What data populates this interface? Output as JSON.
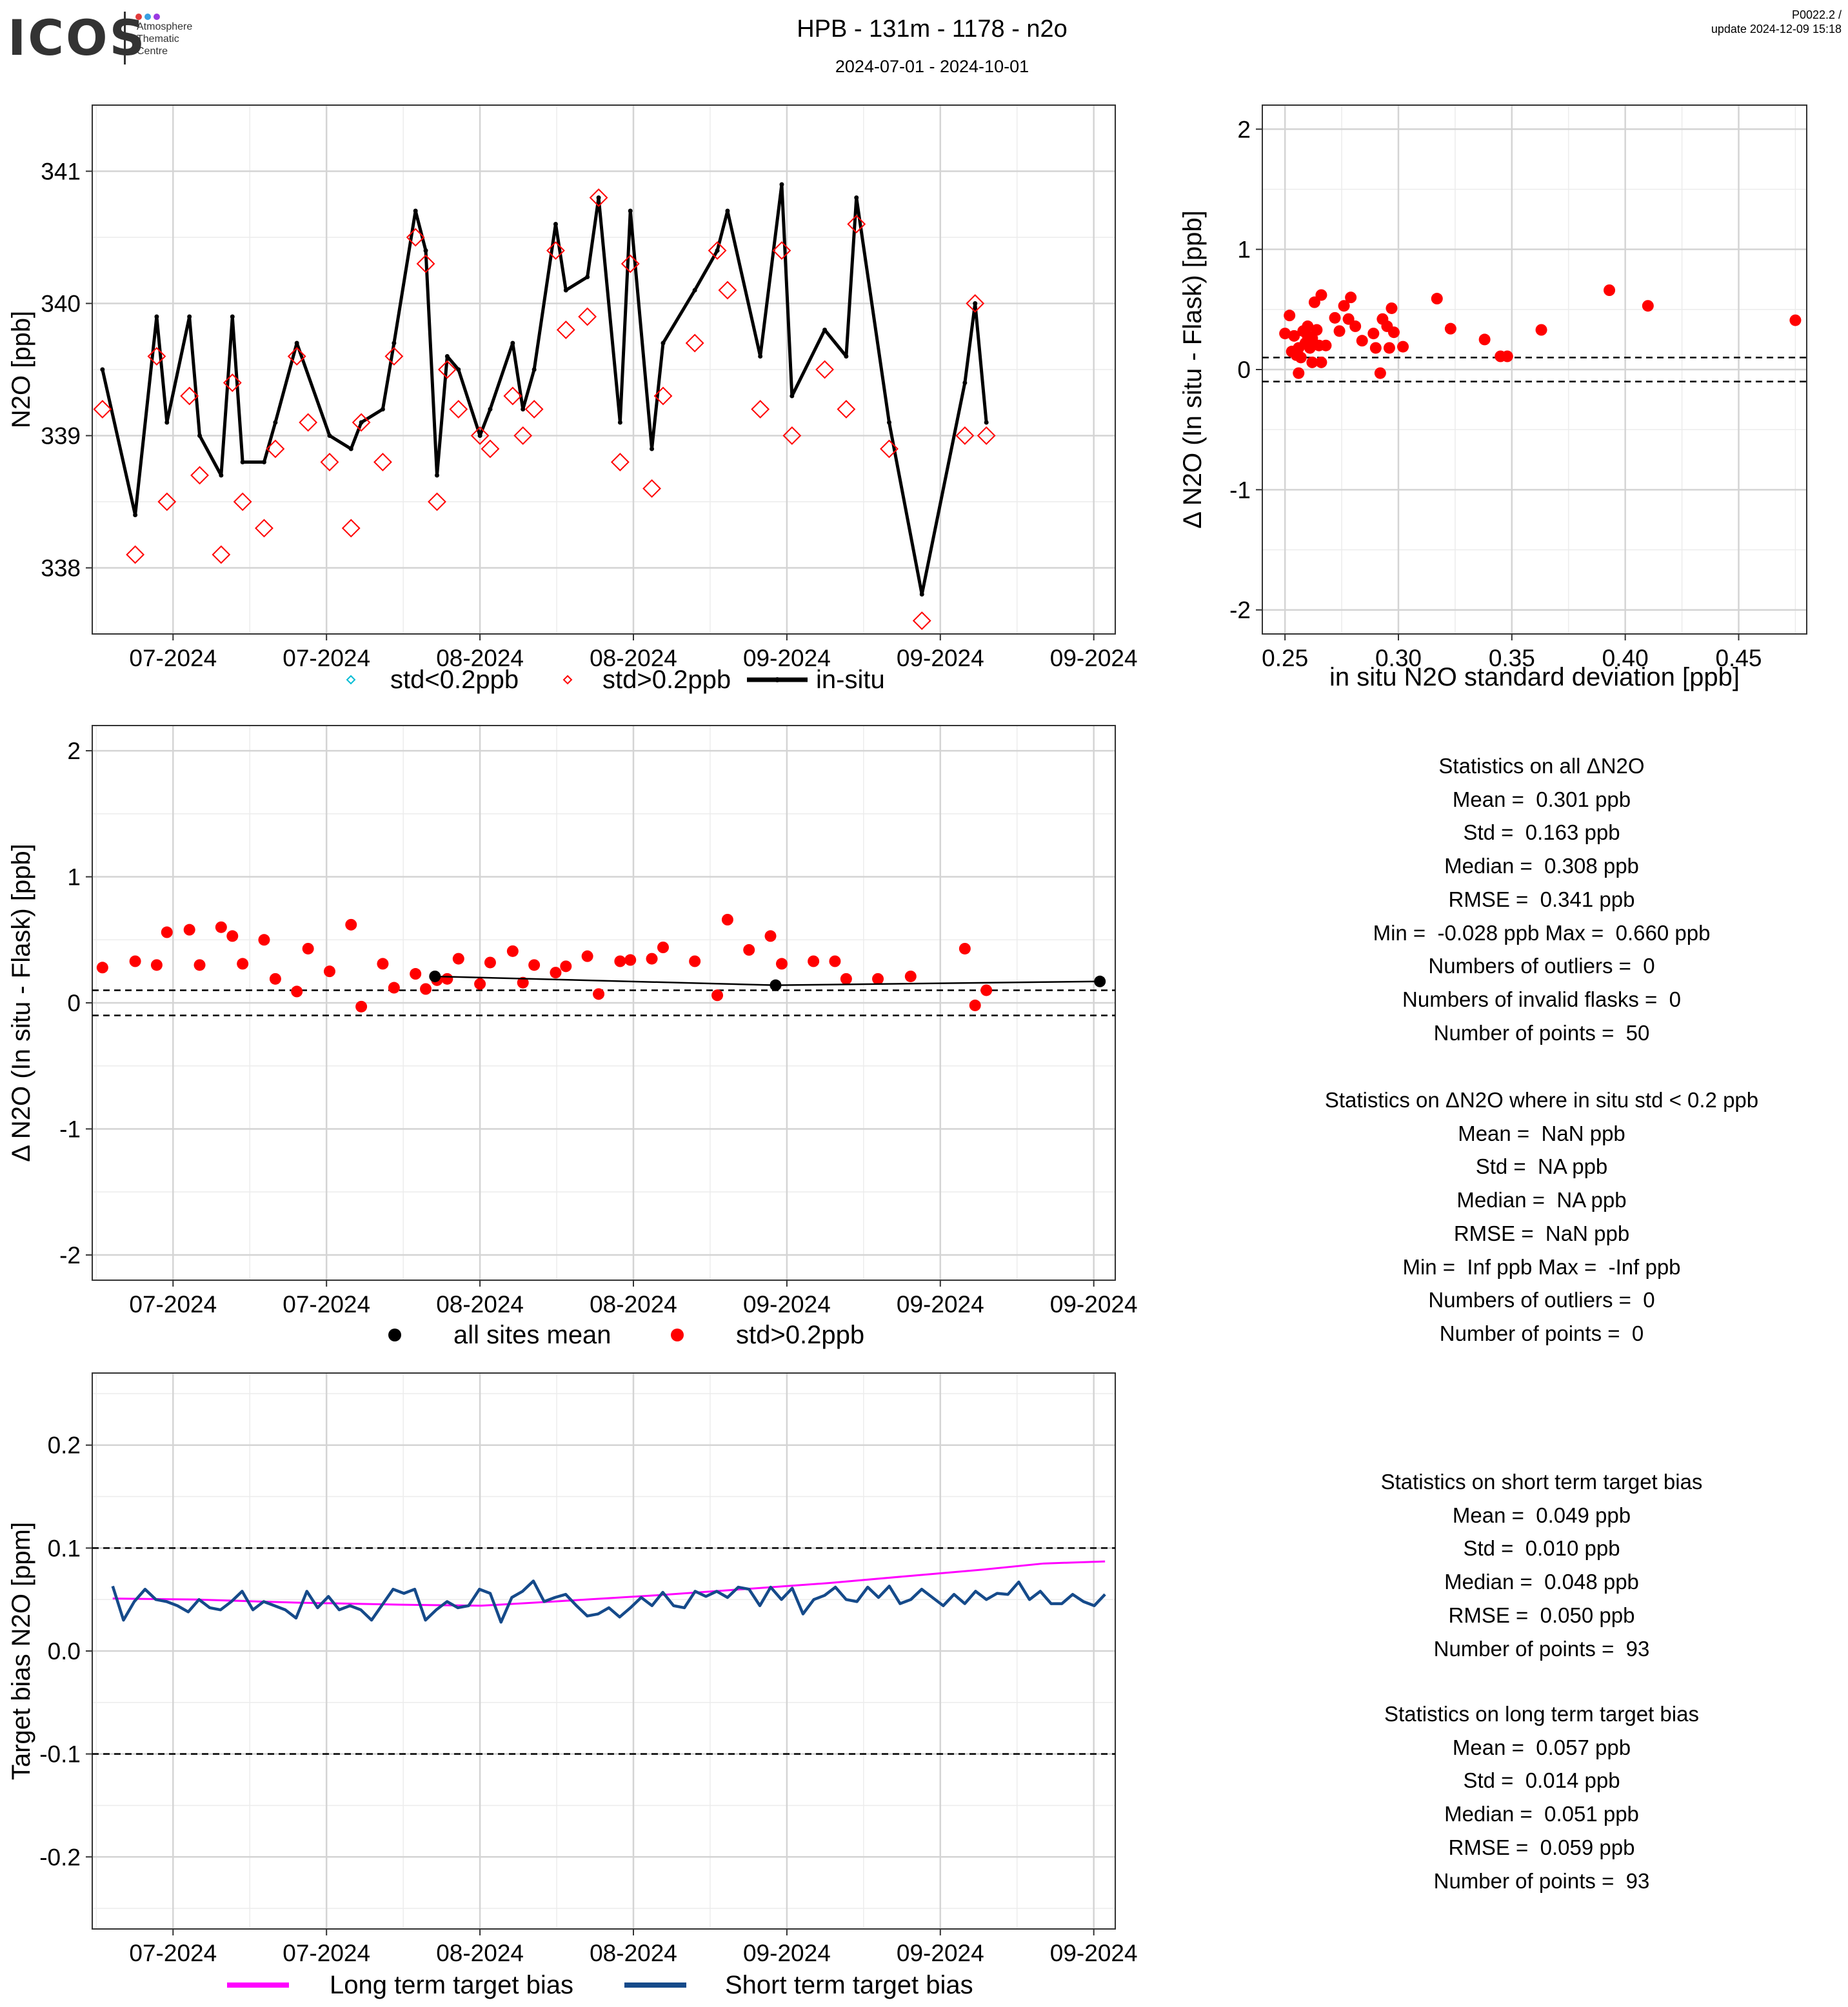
{
  "header": {
    "logo_text": "ICOS",
    "logo_sub": [
      "Atmosphere",
      "Thematic",
      "Centre"
    ],
    "logo_colors": [
      "#e23a3a",
      "#3aa0e2",
      "#9b3ae2"
    ],
    "title": "HPB - 131m - 1178 - n2o",
    "subtitle": "2024-07-01 - 2024-10-01",
    "version_line1": "P0022.2 /",
    "version_line2": "update  2024-12-09 15:18"
  },
  "chart_data": [
    {
      "id": "timeseries",
      "type": "line",
      "ylabel": "N2O [ppb]",
      "xlabel": "",
      "xlim": [
        0,
        100
      ],
      "ylim": [
        337.5,
        341.5
      ],
      "yticks": [
        338,
        339,
        340,
        341
      ],
      "xticks": [
        7.9,
        22.9,
        37.9,
        52.9,
        67.9,
        82.9,
        97.9
      ],
      "xtick_labels": [
        "07-2024",
        "07-2024",
        "08-2024",
        "08-2024",
        "09-2024",
        "09-2024",
        "09-2024"
      ],
      "grid": true,
      "legend": "bottom",
      "colors": {
        "insitu": "#000000",
        "low_std": "#00bcd4",
        "high_std": "#ff0000"
      },
      "legend_entries": [
        "std<0.2ppb",
        "std>0.2ppb",
        "in-situ"
      ],
      "insitu": [
        [
          1.0,
          339.5
        ],
        [
          4.2,
          338.4
        ],
        [
          6.3,
          339.9
        ],
        [
          7.3,
          339.1
        ],
        [
          9.5,
          339.9
        ],
        [
          10.5,
          339.0
        ],
        [
          12.6,
          338.7
        ],
        [
          13.7,
          339.9
        ],
        [
          14.7,
          338.8
        ],
        [
          16.8,
          338.8
        ],
        [
          17.9,
          339.1
        ],
        [
          20.0,
          339.7
        ],
        [
          23.2,
          339.0
        ],
        [
          25.3,
          338.9
        ],
        [
          26.3,
          339.1
        ],
        [
          28.4,
          339.2
        ],
        [
          29.5,
          339.7
        ],
        [
          31.6,
          340.7
        ],
        [
          32.6,
          340.4
        ],
        [
          33.7,
          338.7
        ],
        [
          34.7,
          339.6
        ],
        [
          35.8,
          339.5
        ],
        [
          37.9,
          339.0
        ],
        [
          38.9,
          339.2
        ],
        [
          41.1,
          339.7
        ],
        [
          42.1,
          339.2
        ],
        [
          43.2,
          339.5
        ],
        [
          45.3,
          340.6
        ],
        [
          46.3,
          340.1
        ],
        [
          48.4,
          340.2
        ],
        [
          49.5,
          340.8
        ],
        [
          51.6,
          339.1
        ],
        [
          52.6,
          340.7
        ],
        [
          54.7,
          338.9
        ],
        [
          55.8,
          339.7
        ],
        [
          58.9,
          340.1
        ],
        [
          61.1,
          340.4
        ],
        [
          62.1,
          340.7
        ],
        [
          65.3,
          339.6
        ],
        [
          67.4,
          340.9
        ],
        [
          68.4,
          339.3
        ],
        [
          71.6,
          339.8
        ],
        [
          73.7,
          339.6
        ],
        [
          74.7,
          340.8
        ],
        [
          77.9,
          339.1
        ],
        [
          81.1,
          337.8
        ],
        [
          85.3,
          339.4
        ],
        [
          86.3,
          340.0
        ],
        [
          87.4,
          339.1
        ]
      ],
      "flask_high_std": [
        [
          1.0,
          339.2
        ],
        [
          4.2,
          338.1
        ],
        [
          6.3,
          339.6
        ],
        [
          7.3,
          338.5
        ],
        [
          9.5,
          339.3
        ],
        [
          10.5,
          338.7
        ],
        [
          12.6,
          338.1
        ],
        [
          13.7,
          339.4
        ],
        [
          14.7,
          338.5
        ],
        [
          16.8,
          338.3
        ],
        [
          17.9,
          338.9
        ],
        [
          20.0,
          339.6
        ],
        [
          21.1,
          339.1
        ],
        [
          23.2,
          338.8
        ],
        [
          25.3,
          338.3
        ],
        [
          26.3,
          339.1
        ],
        [
          28.4,
          338.8
        ],
        [
          29.5,
          339.6
        ],
        [
          31.6,
          340.5
        ],
        [
          32.6,
          340.3
        ],
        [
          33.7,
          338.5
        ],
        [
          34.7,
          339.5
        ],
        [
          35.8,
          339.2
        ],
        [
          37.9,
          339.0
        ],
        [
          38.9,
          338.9
        ],
        [
          41.1,
          339.3
        ],
        [
          42.1,
          339.0
        ],
        [
          43.2,
          339.2
        ],
        [
          45.3,
          340.4
        ],
        [
          46.3,
          339.8
        ],
        [
          48.4,
          339.9
        ],
        [
          49.5,
          340.8
        ],
        [
          51.6,
          338.8
        ],
        [
          52.6,
          340.3
        ],
        [
          54.7,
          338.6
        ],
        [
          55.8,
          339.3
        ],
        [
          58.9,
          339.7
        ],
        [
          61.1,
          340.4
        ],
        [
          62.1,
          340.1
        ],
        [
          65.3,
          339.2
        ],
        [
          67.4,
          340.4
        ],
        [
          68.4,
          339.0
        ],
        [
          71.6,
          339.5
        ],
        [
          73.7,
          339.2
        ],
        [
          74.7,
          340.6
        ],
        [
          77.9,
          338.9
        ],
        [
          81.1,
          337.6
        ],
        [
          85.3,
          339.0
        ],
        [
          86.3,
          340.0
        ],
        [
          87.4,
          339.0
        ]
      ]
    },
    {
      "id": "delta_vs_std",
      "type": "scatter",
      "xlabel": "in situ N2O standard deviation [ppb]",
      "ylabel": "Δ N2O (In situ - Flask) [ppb]",
      "xlim": [
        0.24,
        0.48
      ],
      "ylim": [
        -2.2,
        2.2
      ],
      "xticks": [
        0.25,
        0.3,
        0.35,
        0.4,
        0.45
      ],
      "xtick_labels": [
        "0.25",
        "0.30",
        "0.35",
        "0.40",
        "0.45"
      ],
      "yticks": [
        -2,
        -1,
        0,
        1,
        2
      ],
      "ytick_labels": [
        "-2",
        "-1",
        "0",
        "1",
        "2"
      ],
      "hlines": [
        0.1,
        -0.1
      ],
      "grid": true,
      "color": "#ff0000",
      "points": [
        [
          0.25,
          0.3
        ],
        [
          0.252,
          0.45
        ],
        [
          0.253,
          0.15
        ],
        [
          0.254,
          0.28
        ],
        [
          0.255,
          0.12
        ],
        [
          0.256,
          0.18
        ],
        [
          0.256,
          -0.03
        ],
        [
          0.257,
          0.1
        ],
        [
          0.258,
          0.32
        ],
        [
          0.259,
          0.22
        ],
        [
          0.26,
          0.28
        ],
        [
          0.26,
          0.36
        ],
        [
          0.261,
          0.18
        ],
        [
          0.262,
          0.26
        ],
        [
          0.262,
          0.06
        ],
        [
          0.263,
          0.56
        ],
        [
          0.264,
          0.33
        ],
        [
          0.265,
          0.2
        ],
        [
          0.266,
          0.62
        ],
        [
          0.266,
          0.06
        ],
        [
          0.268,
          0.2
        ],
        [
          0.272,
          0.43
        ],
        [
          0.274,
          0.32
        ],
        [
          0.276,
          0.53
        ],
        [
          0.278,
          0.42
        ],
        [
          0.279,
          0.6
        ],
        [
          0.281,
          0.36
        ],
        [
          0.284,
          0.24
        ],
        [
          0.289,
          0.3
        ],
        [
          0.29,
          0.18
        ],
        [
          0.292,
          -0.03
        ],
        [
          0.293,
          0.42
        ],
        [
          0.295,
          0.36
        ],
        [
          0.296,
          0.18
        ],
        [
          0.297,
          0.51
        ],
        [
          0.298,
          0.31
        ],
        [
          0.302,
          0.19
        ],
        [
          0.317,
          0.59
        ],
        [
          0.323,
          0.34
        ],
        [
          0.338,
          0.25
        ],
        [
          0.345,
          0.11
        ],
        [
          0.348,
          0.11
        ],
        [
          0.363,
          0.33
        ],
        [
          0.393,
          0.66
        ],
        [
          0.41,
          0.53
        ],
        [
          0.475,
          0.41
        ]
      ]
    },
    {
      "id": "delta_timeseries",
      "type": "scatter",
      "xlabel": "",
      "ylabel": "Δ N2O (In situ - Flask) [ppb]",
      "xlim": [
        0,
        100
      ],
      "ylim": [
        -2.2,
        2.2
      ],
      "yticks": [
        -2,
        -1,
        0,
        1,
        2
      ],
      "ytick_labels": [
        "-2",
        "-1",
        "0",
        "1",
        "2"
      ],
      "xticks": [
        7.9,
        22.9,
        37.9,
        52.9,
        67.9,
        82.9,
        97.9
      ],
      "xtick_labels": [
        "07-2024",
        "07-2024",
        "08-2024",
        "08-2024",
        "09-2024",
        "09-2024",
        "09-2024"
      ],
      "hlines": [
        0.1,
        -0.1
      ],
      "grid": true,
      "legend": "bottom",
      "legend_entries": [
        "all sites mean",
        "std>0.2ppb"
      ],
      "colors": {
        "mean": "#000000",
        "points": "#ff0000"
      },
      "mean": [
        [
          33.5,
          0.21
        ],
        [
          66.8,
          0.14
        ],
        [
          98.5,
          0.17
        ]
      ],
      "points": [
        [
          1.0,
          0.28
        ],
        [
          4.2,
          0.33
        ],
        [
          6.3,
          0.3
        ],
        [
          7.3,
          0.56
        ],
        [
          9.5,
          0.58
        ],
        [
          10.5,
          0.3
        ],
        [
          12.6,
          0.6
        ],
        [
          13.7,
          0.53
        ],
        [
          14.7,
          0.31
        ],
        [
          16.8,
          0.5
        ],
        [
          17.9,
          0.19
        ],
        [
          20.0,
          0.09
        ],
        [
          21.1,
          0.43
        ],
        [
          23.2,
          0.25
        ],
        [
          25.3,
          0.62
        ],
        [
          26.3,
          -0.03
        ],
        [
          28.4,
          0.31
        ],
        [
          29.5,
          0.12
        ],
        [
          31.6,
          0.23
        ],
        [
          32.6,
          0.11
        ],
        [
          33.7,
          0.18
        ],
        [
          34.7,
          0.19
        ],
        [
          35.8,
          0.35
        ],
        [
          37.9,
          0.15
        ],
        [
          38.9,
          0.32
        ],
        [
          41.1,
          0.41
        ],
        [
          42.1,
          0.16
        ],
        [
          43.2,
          0.3
        ],
        [
          45.3,
          0.24
        ],
        [
          46.3,
          0.29
        ],
        [
          48.4,
          0.37
        ],
        [
          49.5,
          0.07
        ],
        [
          51.6,
          0.33
        ],
        [
          52.6,
          0.34
        ],
        [
          54.7,
          0.35
        ],
        [
          55.8,
          0.44
        ],
        [
          58.9,
          0.33
        ],
        [
          61.1,
          0.06
        ],
        [
          62.1,
          0.66
        ],
        [
          64.2,
          0.42
        ],
        [
          66.3,
          0.53
        ],
        [
          67.4,
          0.31
        ],
        [
          70.5,
          0.33
        ],
        [
          72.6,
          0.33
        ],
        [
          73.7,
          0.19
        ],
        [
          76.8,
          0.19
        ],
        [
          80.0,
          0.21
        ],
        [
          85.3,
          0.43
        ],
        [
          86.3,
          -0.02
        ],
        [
          87.4,
          0.1
        ]
      ]
    },
    {
      "id": "target_bias",
      "type": "line",
      "xlabel": "",
      "ylabel": "Target bias N2O [ppm]",
      "xlim": [
        0,
        100
      ],
      "ylim": [
        -0.27,
        0.27
      ],
      "yticks": [
        -0.2,
        -0.1,
        0.0,
        0.1,
        0.2
      ],
      "ytick_labels": [
        "-0.2",
        "-0.1",
        "0.0",
        "0.1",
        "0.2"
      ],
      "xticks": [
        7.9,
        22.9,
        37.9,
        52.9,
        67.9,
        82.9,
        97.9
      ],
      "xtick_labels": [
        "07-2024",
        "07-2024",
        "08-2024",
        "08-2024",
        "09-2024",
        "09-2024",
        "09-2024"
      ],
      "hlines": [
        0.1,
        -0.1
      ],
      "grid": true,
      "legend": "bottom",
      "series": [
        {
          "name": "Long term target bias",
          "color": "#ff00ff",
          "x": [
            2,
            10,
            20,
            30,
            38,
            45,
            55,
            65,
            72,
            80,
            87,
            93,
            99
          ],
          "values": [
            0.051,
            0.05,
            0.047,
            0.045,
            0.044,
            0.048,
            0.054,
            0.061,
            0.066,
            0.073,
            0.079,
            0.085,
            0.087
          ]
        },
        {
          "name": "Short term target bias",
          "color": "#154a8a",
          "x_start": 2,
          "x_end": 99,
          "values": [
            0.063,
            0.03,
            0.048,
            0.06,
            0.05,
            0.048,
            0.044,
            0.038,
            0.05,
            0.042,
            0.04,
            0.048,
            0.058,
            0.04,
            0.048,
            0.044,
            0.04,
            0.032,
            0.058,
            0.042,
            0.053,
            0.04,
            0.044,
            0.04,
            0.03,
            0.045,
            0.06,
            0.056,
            0.06,
            0.03,
            0.04,
            0.048,
            0.042,
            0.044,
            0.06,
            0.056,
            0.028,
            0.052,
            0.058,
            0.068,
            0.048,
            0.052,
            0.055,
            0.044,
            0.034,
            0.036,
            0.042,
            0.033,
            0.042,
            0.052,
            0.044,
            0.057,
            0.044,
            0.042,
            0.058,
            0.053,
            0.058,
            0.052,
            0.062,
            0.06,
            0.044,
            0.062,
            0.05,
            0.061,
            0.036,
            0.05,
            0.054,
            0.062,
            0.05,
            0.048,
            0.062,
            0.052,
            0.063,
            0.046,
            0.05,
            0.06,
            0.052,
            0.044,
            0.055,
            0.046,
            0.058,
            0.05,
            0.056,
            0.055,
            0.067,
            0.05,
            0.058,
            0.046,
            0.046,
            0.055,
            0.048,
            0.044,
            0.055
          ]
        }
      ]
    }
  ],
  "stats_all": [
    "Statistics on all ΔN2O",
    "Mean =  0.301 ppb",
    "Std =  0.163 ppb",
    "Median =  0.308 ppb",
    "RMSE =  0.341 ppb",
    "Min =  -0.028 ppb Max =  0.660 ppb",
    "Numbers of outliers =  0",
    "Numbers of invalid flasks =  0",
    "Number of points =  50"
  ],
  "stats_low": [
    "Statistics on ΔN2O where in situ std < 0.2 ppb",
    "Mean =  NaN ppb",
    "Std =  NA ppb",
    "Median =  NA ppb",
    "RMSE =  NaN ppb",
    "Min =  Inf ppb Max =  -Inf ppb",
    "Numbers of outliers =  0",
    "Number of points =  0"
  ],
  "stats_short": [
    "Statistics on short term target bias",
    "Mean =  0.049 ppb",
    "Std =  0.010 ppb",
    "Median =  0.048 ppb",
    "RMSE =  0.050 ppb",
    "Number of points =  93"
  ],
  "stats_long": [
    "Statistics on long term target bias",
    "Mean =  0.057 ppb",
    "Std =  0.014 ppb",
    "Median =  0.051 ppb",
    "RMSE =  0.059 ppb",
    "Number of points =  93"
  ]
}
